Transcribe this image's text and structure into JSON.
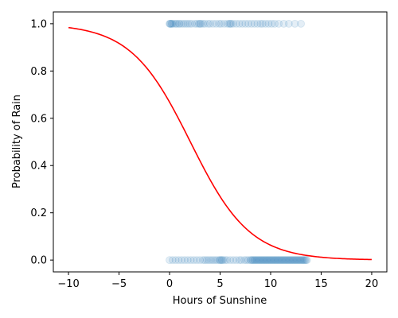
{
  "chart_data": {
    "type": "scatter",
    "title": "",
    "xlabel": "Hours of Sunshine",
    "ylabel": "Probability of Rain",
    "xlim": [
      -11.5,
      21.5
    ],
    "ylim": [
      -0.05,
      1.05
    ],
    "xticks": [
      -10,
      -5,
      0,
      5,
      10,
      15,
      20
    ],
    "yticks": [
      0.0,
      0.2,
      0.4,
      0.6,
      0.8,
      1.0
    ],
    "xtick_labels": [
      "−10",
      "−5",
      "0",
      "5",
      "10",
      "15",
      "20"
    ],
    "ytick_labels": [
      "0.0",
      "0.2",
      "0.4",
      "0.6",
      "0.8",
      "1.0"
    ],
    "grid": false,
    "series": [
      {
        "kind": "scatter",
        "color": "#1f77b4",
        "alpha": 0.12,
        "points_y1": [
          0.0,
          0.05,
          0.1,
          0.2,
          0.25,
          0.4,
          0.6,
          0.7,
          0.9,
          1.0,
          1.2,
          1.4,
          1.6,
          1.8,
          2.0,
          2.2,
          2.5,
          2.7,
          2.9,
          3.0,
          3.1,
          3.3,
          3.5,
          3.8,
          4.0,
          4.3,
          4.6,
          4.9,
          5.1,
          5.4,
          5.7,
          5.9,
          6.0,
          6.1,
          6.3,
          6.6,
          6.9,
          7.2,
          7.5,
          7.8,
          8.1,
          8.4,
          8.7,
          9.0,
          9.2,
          9.5,
          9.8,
          10.1,
          10.4,
          10.8,
          11.3,
          11.8,
          12.4,
          13.0
        ],
        "points_y0": [
          0.0,
          0.3,
          0.6,
          0.9,
          1.2,
          1.5,
          1.8,
          2.1,
          2.4,
          2.7,
          3.0,
          3.3,
          3.5,
          3.7,
          3.9,
          4.1,
          4.3,
          4.5,
          4.7,
          4.9,
          5.0,
          5.1,
          5.2,
          5.3,
          5.5,
          5.7,
          6.0,
          6.3,
          6.6,
          6.9,
          7.1,
          7.4,
          7.6,
          7.8,
          8.0,
          8.1,
          8.2,
          8.3,
          8.4,
          8.5,
          8.6,
          8.7,
          8.8,
          8.9,
          9.0,
          9.1,
          9.2,
          9.3,
          9.4,
          9.5,
          9.6,
          9.7,
          9.8,
          9.9,
          10.0,
          10.1,
          10.2,
          10.3,
          10.4,
          10.5,
          10.6,
          10.7,
          10.8,
          10.9,
          11.0,
          11.1,
          11.2,
          11.3,
          11.4,
          11.5,
          11.6,
          11.7,
          11.8,
          11.9,
          12.0,
          12.1,
          12.2,
          12.3,
          12.4,
          12.5,
          12.6,
          12.7,
          12.8,
          12.9,
          13.0,
          13.1,
          13.2,
          13.3,
          13.4,
          13.5,
          13.6
        ]
      },
      {
        "kind": "line",
        "color": "#ff0000",
        "model": "logistic",
        "intercept": 0.7,
        "slope": -0.34,
        "x_range": [
          -10,
          20
        ]
      }
    ]
  }
}
